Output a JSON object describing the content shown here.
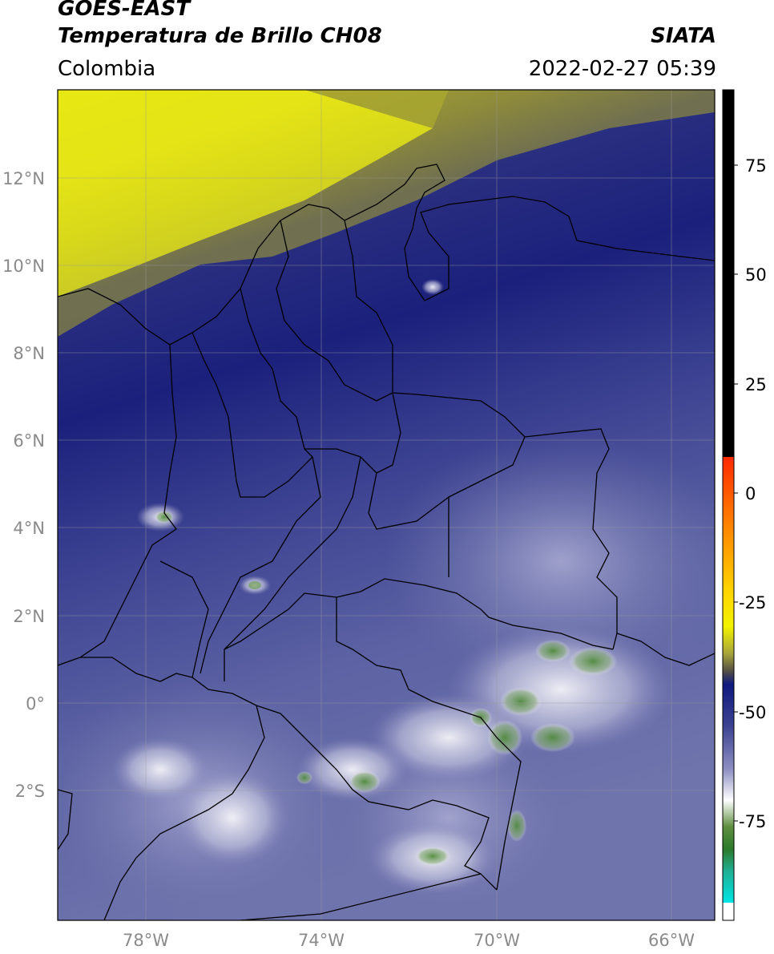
{
  "header": {
    "satellite": "GOES-EAST",
    "product": "Temperatura de Brillo CH08",
    "organization": "SIATA",
    "region": "Colombia",
    "timestamp": "2022-02-27 05:39"
  },
  "map": {
    "lat_ticks": [
      {
        "value": 12,
        "label": "12°N"
      },
      {
        "value": 10,
        "label": "10°N"
      },
      {
        "value": 8,
        "label": "8°N"
      },
      {
        "value": 6,
        "label": "6°N"
      },
      {
        "value": 4,
        "label": "4°N"
      },
      {
        "value": 2,
        "label": "2°N"
      },
      {
        "value": 0,
        "label": "0°"
      },
      {
        "value": -2,
        "label": "2°S"
      }
    ],
    "lon_ticks": [
      {
        "value": -78,
        "label": "78°W"
      },
      {
        "value": -74,
        "label": "74°W"
      },
      {
        "value": -70,
        "label": "70°W"
      },
      {
        "value": -66,
        "label": "66°W"
      }
    ],
    "colors": {
      "dry_yellow": "#e8e800",
      "olive": "#8a8a3a",
      "deep_blue": "#1a1f7e",
      "mid_blue": "#4a5099",
      "light_blue": "#9a9cc8",
      "cloud_white": "#f0f0f5",
      "cloud_green": "#5a8f4a"
    }
  },
  "colorbar": {
    "ticks": [
      {
        "value": 75,
        "label": "75"
      },
      {
        "value": 50,
        "label": "50"
      },
      {
        "value": 25,
        "label": "25"
      },
      {
        "value": 0,
        "label": "0"
      },
      {
        "value": -25,
        "label": "-25"
      },
      {
        "value": -50,
        "label": "-50"
      },
      {
        "value": -75,
        "label": "-75"
      }
    ]
  }
}
